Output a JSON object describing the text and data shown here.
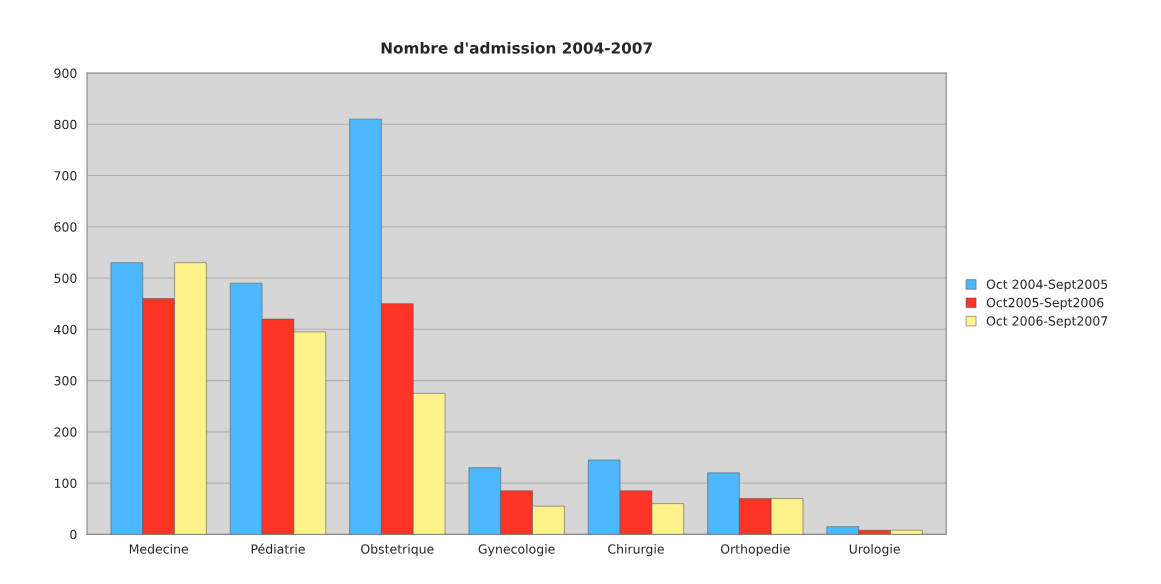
{
  "chart_data": {
    "type": "bar",
    "title": "Nombre d'admission 2004-2007",
    "categories": [
      "Medecine",
      "Pédiatrie",
      "Obstetrique",
      "Gynecologie",
      "Chirurgie",
      "Orthopedie",
      "Urologie"
    ],
    "series": [
      {
        "name": "Oct 2004-Sept2005",
        "color": "#4db8ff",
        "values": [
          530,
          490,
          810,
          130,
          145,
          120,
          15
        ]
      },
      {
        "name": "Oct2005-Sept2006",
        "color": "#ff3326",
        "values": [
          460,
          420,
          450,
          85,
          85,
          70,
          8
        ]
      },
      {
        "name": "Oct 2006-Sept2007",
        "color": "#fff28c",
        "values": [
          530,
          395,
          275,
          55,
          60,
          70,
          8
        ]
      }
    ],
    "ylim": [
      0,
      900
    ],
    "yticks": [
      0,
      100,
      200,
      300,
      400,
      500,
      600,
      700,
      800,
      900
    ],
    "grid": "y",
    "legend": "right"
  }
}
